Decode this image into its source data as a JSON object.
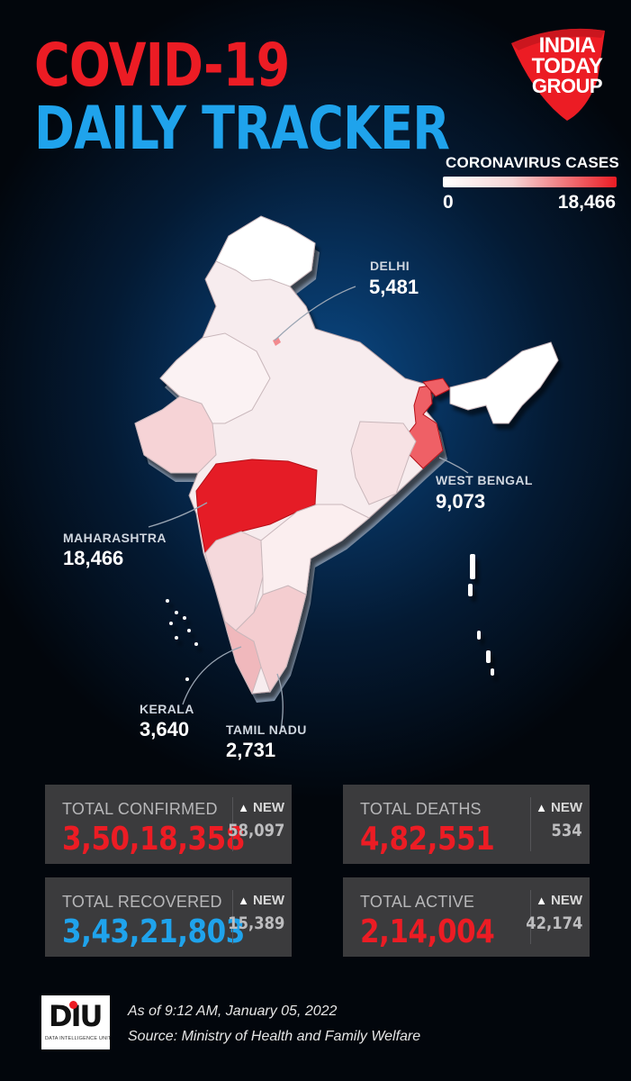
{
  "title": {
    "line1": "COVID-19",
    "line2": "DAILY TRACKER"
  },
  "logo": {
    "line1": "INDIA",
    "line2": "TODAY",
    "line3": "GROUP"
  },
  "legend": {
    "title": "CORONAVIRUS CASES",
    "min": "0",
    "max": "18,466",
    "color_low": "#ffffff",
    "color_high": "#ec1c24"
  },
  "map_labels": [
    {
      "name": "DELHI",
      "value": "5,481"
    },
    {
      "name": "WEST BENGAL",
      "value": "9,073"
    },
    {
      "name": "MAHARASHTRA",
      "value": "18,466"
    },
    {
      "name": "KERALA",
      "value": "3,640"
    },
    {
      "name": "TAMIL NADU",
      "value": "2,731"
    }
  ],
  "stats": [
    {
      "label": "TOTAL CONFIRMED",
      "value": "3,50,18,358",
      "new_label": "NEW",
      "new_value": "58,097",
      "color": "#ec1c24"
    },
    {
      "label": "TOTAL DEATHS",
      "value": "4,82,551",
      "new_label": "NEW",
      "new_value": "534",
      "color": "#ec1c24"
    },
    {
      "label": "TOTAL RECOVERED",
      "value": "3,43,21,803",
      "new_label": "NEW",
      "new_value": "15,389",
      "color": "#1fa3ec"
    },
    {
      "label": "TOTAL ACTIVE",
      "value": "2,14,004",
      "new_label": "NEW",
      "new_value": "42,174",
      "color": "#ec1c24"
    }
  ],
  "footer": {
    "logo_text": "DIU",
    "logo_sub": "DATA INTELLIGENCE UNIT",
    "as_of": "As of 9:12 AM, January 05, 2022",
    "source": "Source: Ministry of Health and Family Welfare"
  }
}
